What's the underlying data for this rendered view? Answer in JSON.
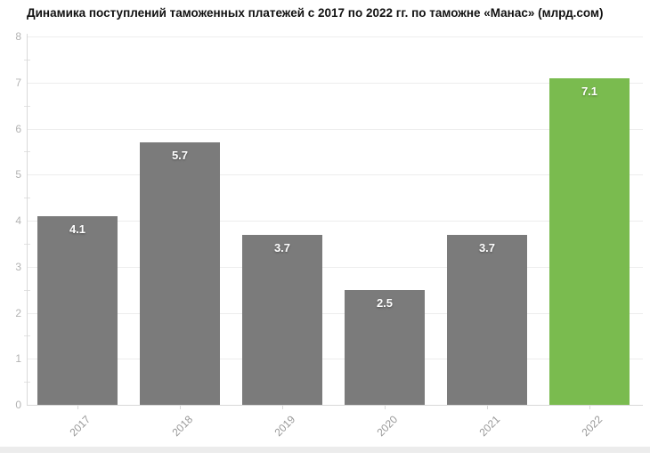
{
  "title": "Динамика поступлений таможенных платежей с 2017 по 2022 гг. по таможне «Манас» (млрд.сом)",
  "chart_data": {
    "type": "bar",
    "title": "Динамика поступлений таможенных платежей с 2017 по 2022 гг. по таможне «Манас» (млрд.сом)",
    "categories": [
      "2017",
      "2018",
      "2019",
      "2020",
      "2021",
      "2022"
    ],
    "values": [
      4.1,
      5.7,
      3.7,
      2.5,
      3.7,
      7.1
    ],
    "bar_labels": [
      "4.1",
      "5.7",
      "3.7",
      "2.5",
      "3.7",
      "7.1"
    ],
    "highlight_index": 5,
    "xlabel": "",
    "ylabel": "",
    "ylim": [
      0,
      8
    ],
    "yticks": [
      0,
      1,
      2,
      3,
      4,
      5,
      6,
      7,
      8
    ],
    "minor_tick_step": 0.5,
    "grid": true,
    "legend": "none",
    "colors": {
      "bar_default": "#7b7b7b",
      "bar_highlight": "#7abb4f",
      "gridline": "#ededed",
      "axis": "#d9d9d9",
      "ytick_label": "#b3b3b3",
      "xtick_label": "#999999",
      "value_label": "#ffffff",
      "title": "#111111",
      "background": "#ffffff"
    }
  }
}
